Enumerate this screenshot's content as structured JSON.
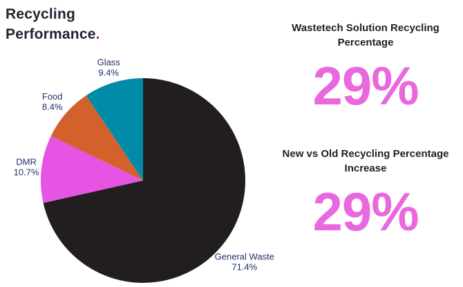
{
  "header": {
    "title_line1": "Recycling",
    "title_line2": "Performance",
    "accent_dot": ".",
    "title_color": "#232230",
    "accent_color": "#C11677"
  },
  "stats": [
    {
      "heading": "Wastetech Solution Recycling Percentage",
      "value": "29%"
    },
    {
      "heading": "New vs Old Recycling Percentage Increase",
      "value": "29%"
    }
  ],
  "colors": {
    "stat_value_pink": "#E968DD",
    "heading_dark": "#1F1E26",
    "pie_label_navy": "#22306B",
    "background": "#ffffff"
  },
  "chart_data": {
    "type": "pie",
    "title": "Recycling Performance",
    "start_angle_deg": 0,
    "direction": "clockwise",
    "labels_outside": true,
    "legend": "none",
    "slices": [
      {
        "label": "General Waste",
        "value": 71.4,
        "display": "71.4%",
        "color": "#221E1F",
        "label_offset": 40
      },
      {
        "label": "DMR",
        "value": 10.7,
        "display": "10.7%",
        "color": "#E554E2",
        "label_offset": 22
      },
      {
        "label": "Food",
        "value": 8.4,
        "display": "8.4%",
        "color": "#D2612B",
        "label_offset": 26
      },
      {
        "label": "Glass",
        "value": 9.4,
        "display": "9.4%",
        "color": "#008CA8",
        "label_offset": 23
      }
    ]
  }
}
